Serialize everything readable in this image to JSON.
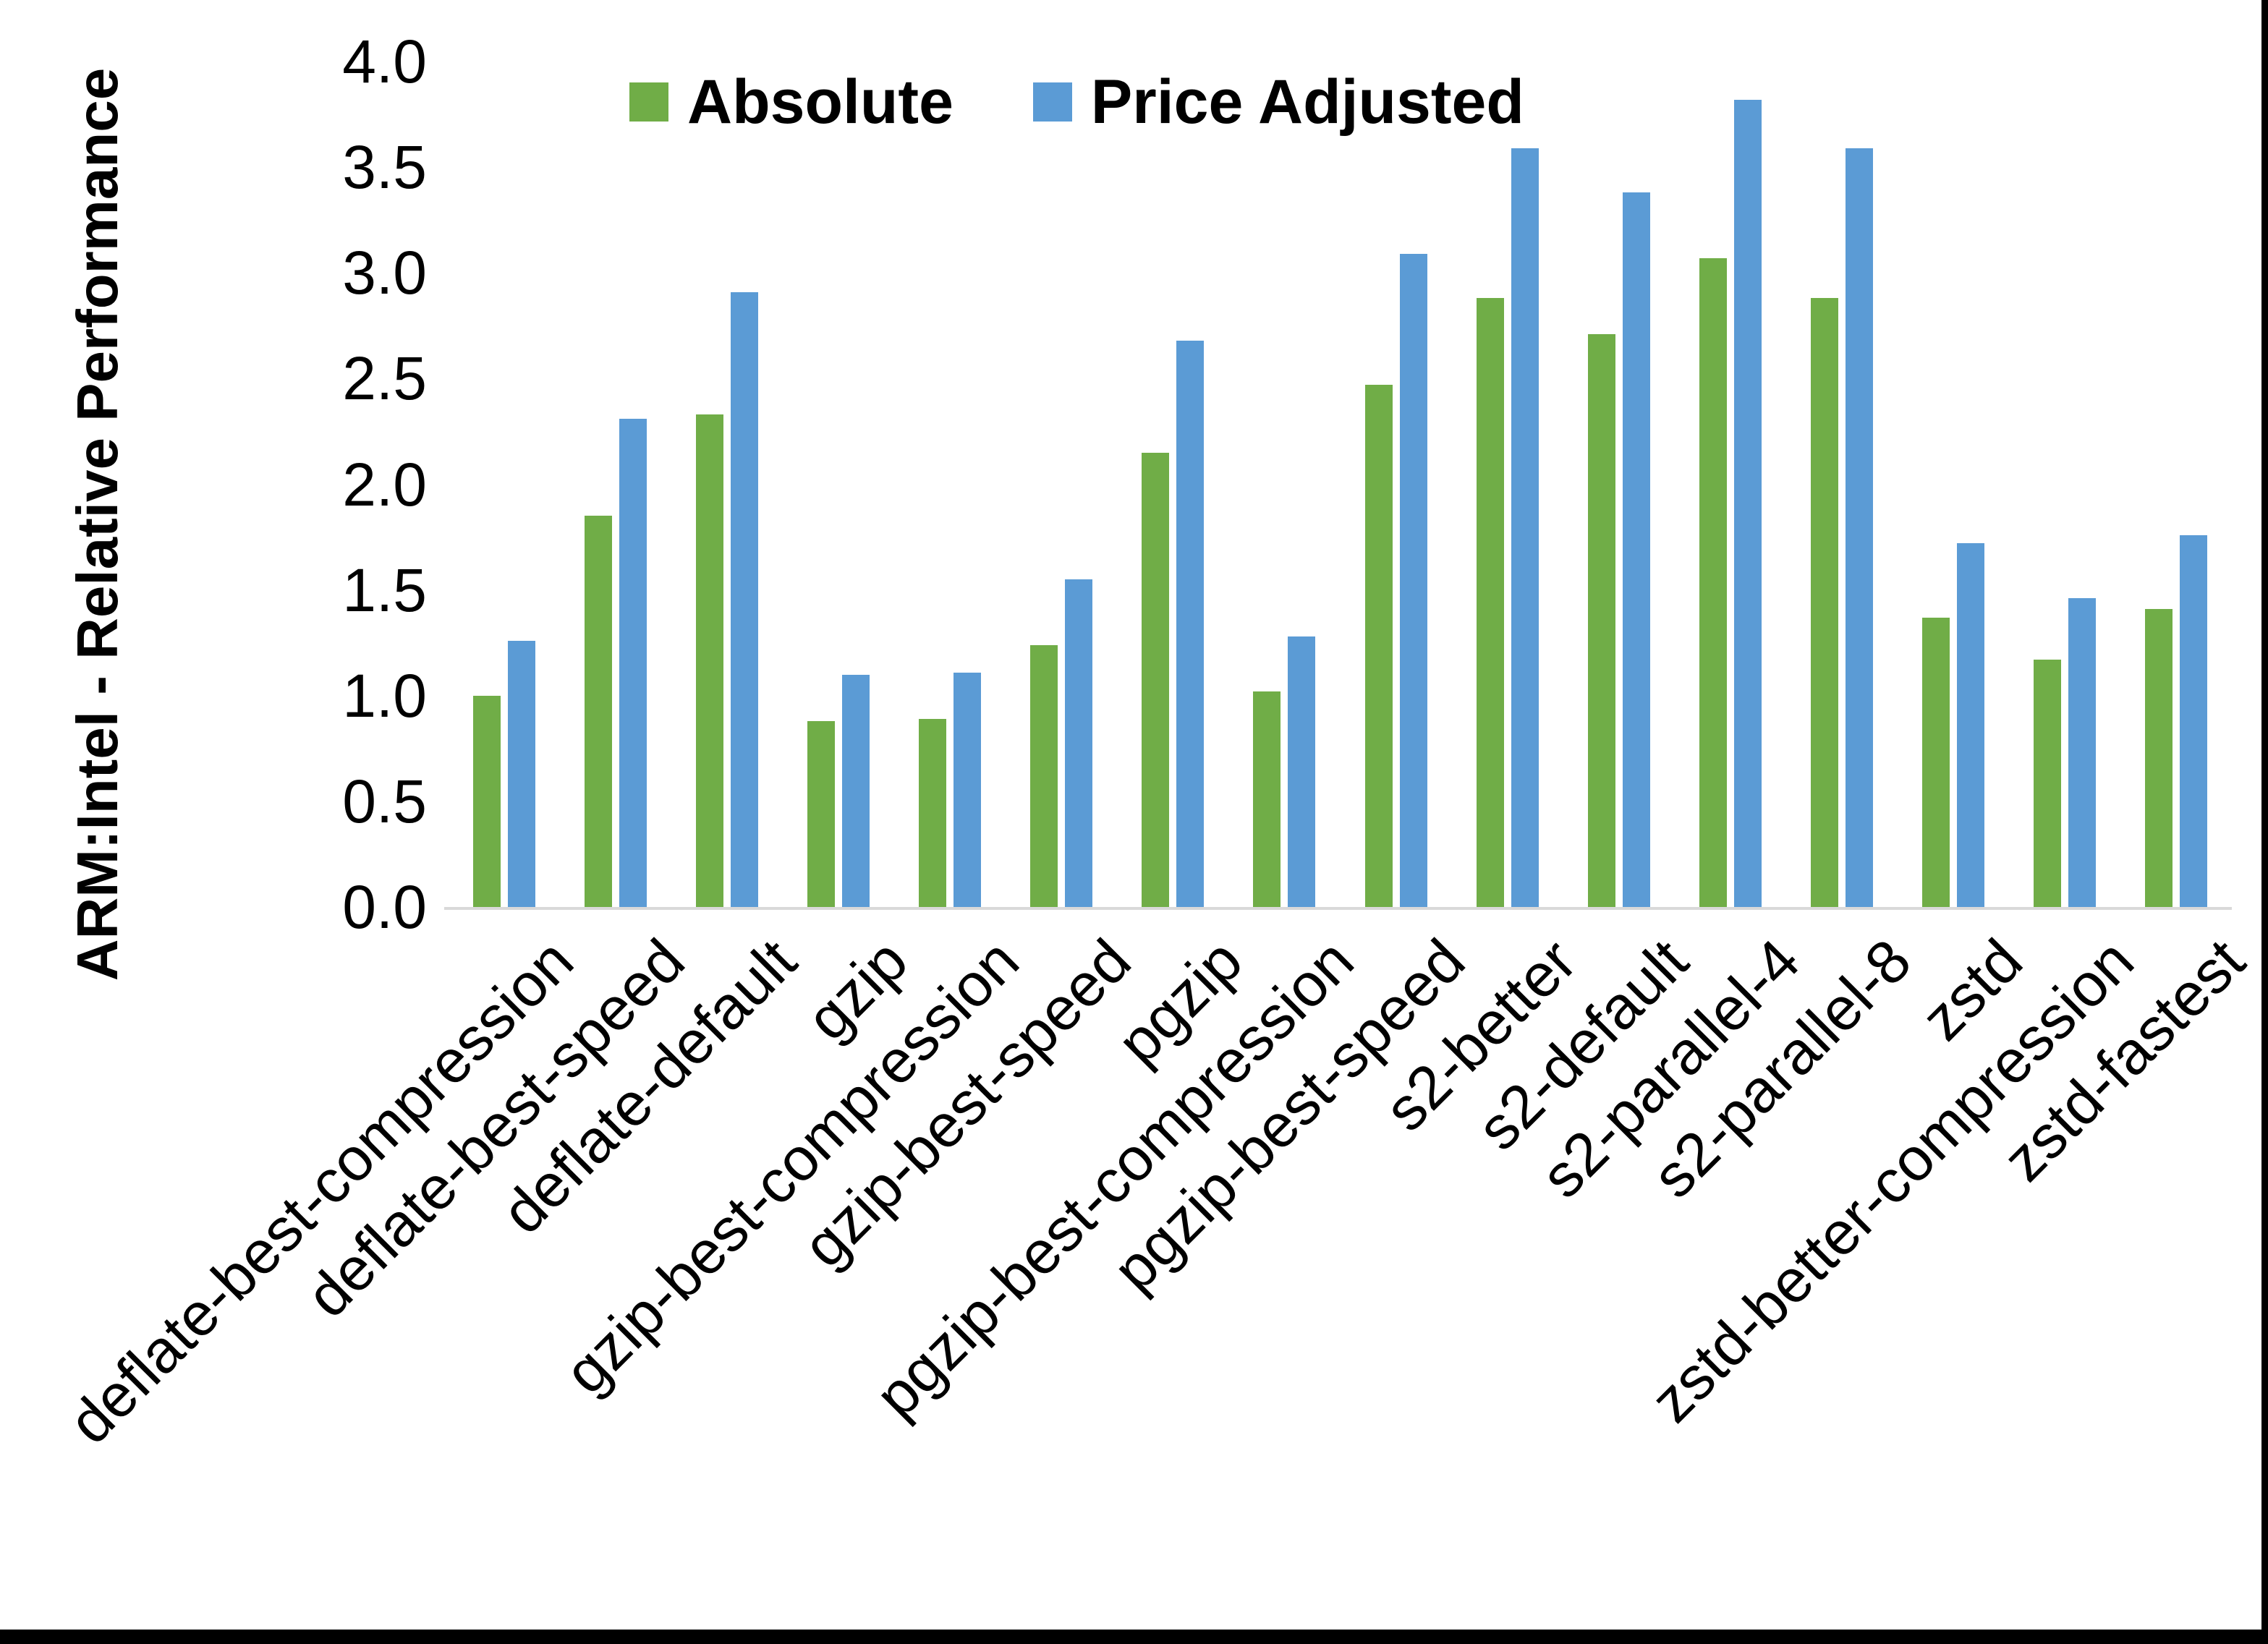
{
  "chart_data": {
    "type": "bar",
    "title": "",
    "xlabel": "",
    "ylabel": "ARM:Intel - Relative Performance",
    "ylim": [
      0.0,
      4.0
    ],
    "ytick_step": 0.5,
    "grid": false,
    "legend_position": "top-center",
    "categories": [
      "deflate-best-compression",
      "deflate-best-speed",
      "deflate-default",
      "gzip",
      "gzip-best-compression",
      "gzip-best-speed",
      "pgzip",
      "pgzip-best-compression",
      "pgzip-best-speed",
      "s2-better",
      "s2-default",
      "s2-parallel-4",
      "s2-parallel-8",
      "zstd",
      "zstd-better-compression",
      "zstd-fastest"
    ],
    "series": [
      {
        "name": "Absolute",
        "color": "#70AD47",
        "values": [
          1.0,
          1.85,
          2.33,
          0.88,
          0.89,
          1.24,
          2.15,
          1.02,
          2.47,
          2.88,
          2.71,
          3.07,
          2.88,
          1.37,
          1.17,
          1.41
        ]
      },
      {
        "name": "Price Adjusted",
        "color": "#5B9BD5",
        "values": [
          1.26,
          2.31,
          2.91,
          1.1,
          1.11,
          1.55,
          2.68,
          1.28,
          3.09,
          3.59,
          3.38,
          3.82,
          3.59,
          1.72,
          1.46,
          1.76
        ]
      }
    ]
  },
  "axis": {
    "baseline_color": "#d9d9d9",
    "text_color": "#000000"
  },
  "frame": {
    "background": "#ffffff",
    "border_color": "#000000"
  }
}
